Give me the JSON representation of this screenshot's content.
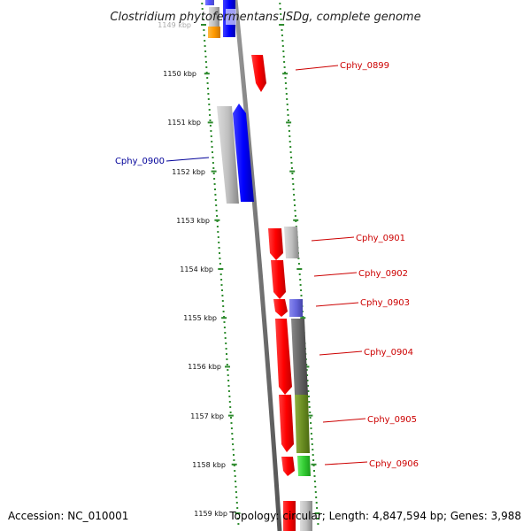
{
  "title": "Clostridium phytofermentans ISDg, complete genome",
  "footer": {
    "accession": "Accession: NC_010001",
    "summary": "Topology: circular; Length: 4,847,594 bp; Genes: 3,988"
  },
  "scale_labels": [
    "1149 kbp",
    "1150 kbp",
    "1151 kbp",
    "1152 kbp",
    "1153 kbp",
    "1154 kbp",
    "1155 kbp",
    "1156 kbp",
    "1157 kbp",
    "1158 kbp",
    "1159 kbp"
  ],
  "gene_labels": [
    "Cphy_0899",
    "Cphy_0900",
    "Cphy_0901",
    "Cphy_0902",
    "Cphy_0903",
    "Cphy_0904",
    "Cphy_0905",
    "Cphy_0906"
  ],
  "colors": {
    "forward_strand": "#ff0000",
    "reverse_strand": "#0000ff",
    "label_forward": "#cc0000",
    "label_reverse": "#000099",
    "backbone": "#777777",
    "tick_marks": "#2e8b2e",
    "gray_feature": "#bbbbbb",
    "dark_gray_feature": "#666666",
    "olive_feature": "#6b8e23",
    "green_feature": "#33cc33",
    "orange_feature": "#ff9900",
    "purple_feature": "#6666dd"
  }
}
